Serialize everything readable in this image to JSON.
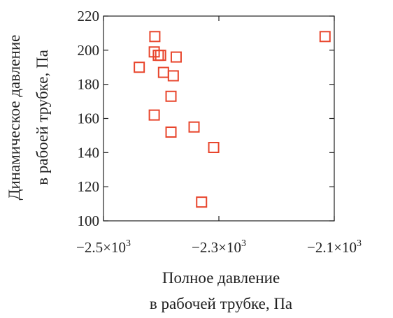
{
  "chart_data": {
    "type": "scatter",
    "xlabel_line1": "Полное давление",
    "xlabel_line2": "в рабочей трубке, Па",
    "ylabel_line1": "Динамическое давление",
    "ylabel_line2": "в рабоей трубке, Па",
    "xlim": [
      -2500,
      -2100
    ],
    "ylim": [
      100,
      220
    ],
    "x_ticks": [
      -2500,
      -2300,
      -2100
    ],
    "x_tick_labels": [
      {
        "mantissa": "−2.5×10",
        "exp": "3"
      },
      {
        "mantissa": "−2.3×10",
        "exp": "3"
      },
      {
        "mantissa": "−2.1×10",
        "exp": "3"
      }
    ],
    "y_ticks": [
      100,
      120,
      140,
      160,
      180,
      200,
      220
    ],
    "y_tick_labels": [
      "100",
      "120",
      "140",
      "160",
      "180",
      "200",
      "220"
    ],
    "marker": "hollow-square",
    "marker_color": "#e8452c",
    "points": [
      {
        "x": -2411,
        "y": 208
      },
      {
        "x": -2412,
        "y": 199
      },
      {
        "x": -2405,
        "y": 197
      },
      {
        "x": -2401,
        "y": 197
      },
      {
        "x": -2374,
        "y": 196
      },
      {
        "x": -2438,
        "y": 190
      },
      {
        "x": -2396,
        "y": 187
      },
      {
        "x": -2379,
        "y": 185
      },
      {
        "x": -2383,
        "y": 173
      },
      {
        "x": -2412,
        "y": 162
      },
      {
        "x": -2343,
        "y": 155
      },
      {
        "x": -2383,
        "y": 152
      },
      {
        "x": -2309,
        "y": 143
      },
      {
        "x": -2330,
        "y": 111
      },
      {
        "x": -2116,
        "y": 208
      }
    ]
  }
}
